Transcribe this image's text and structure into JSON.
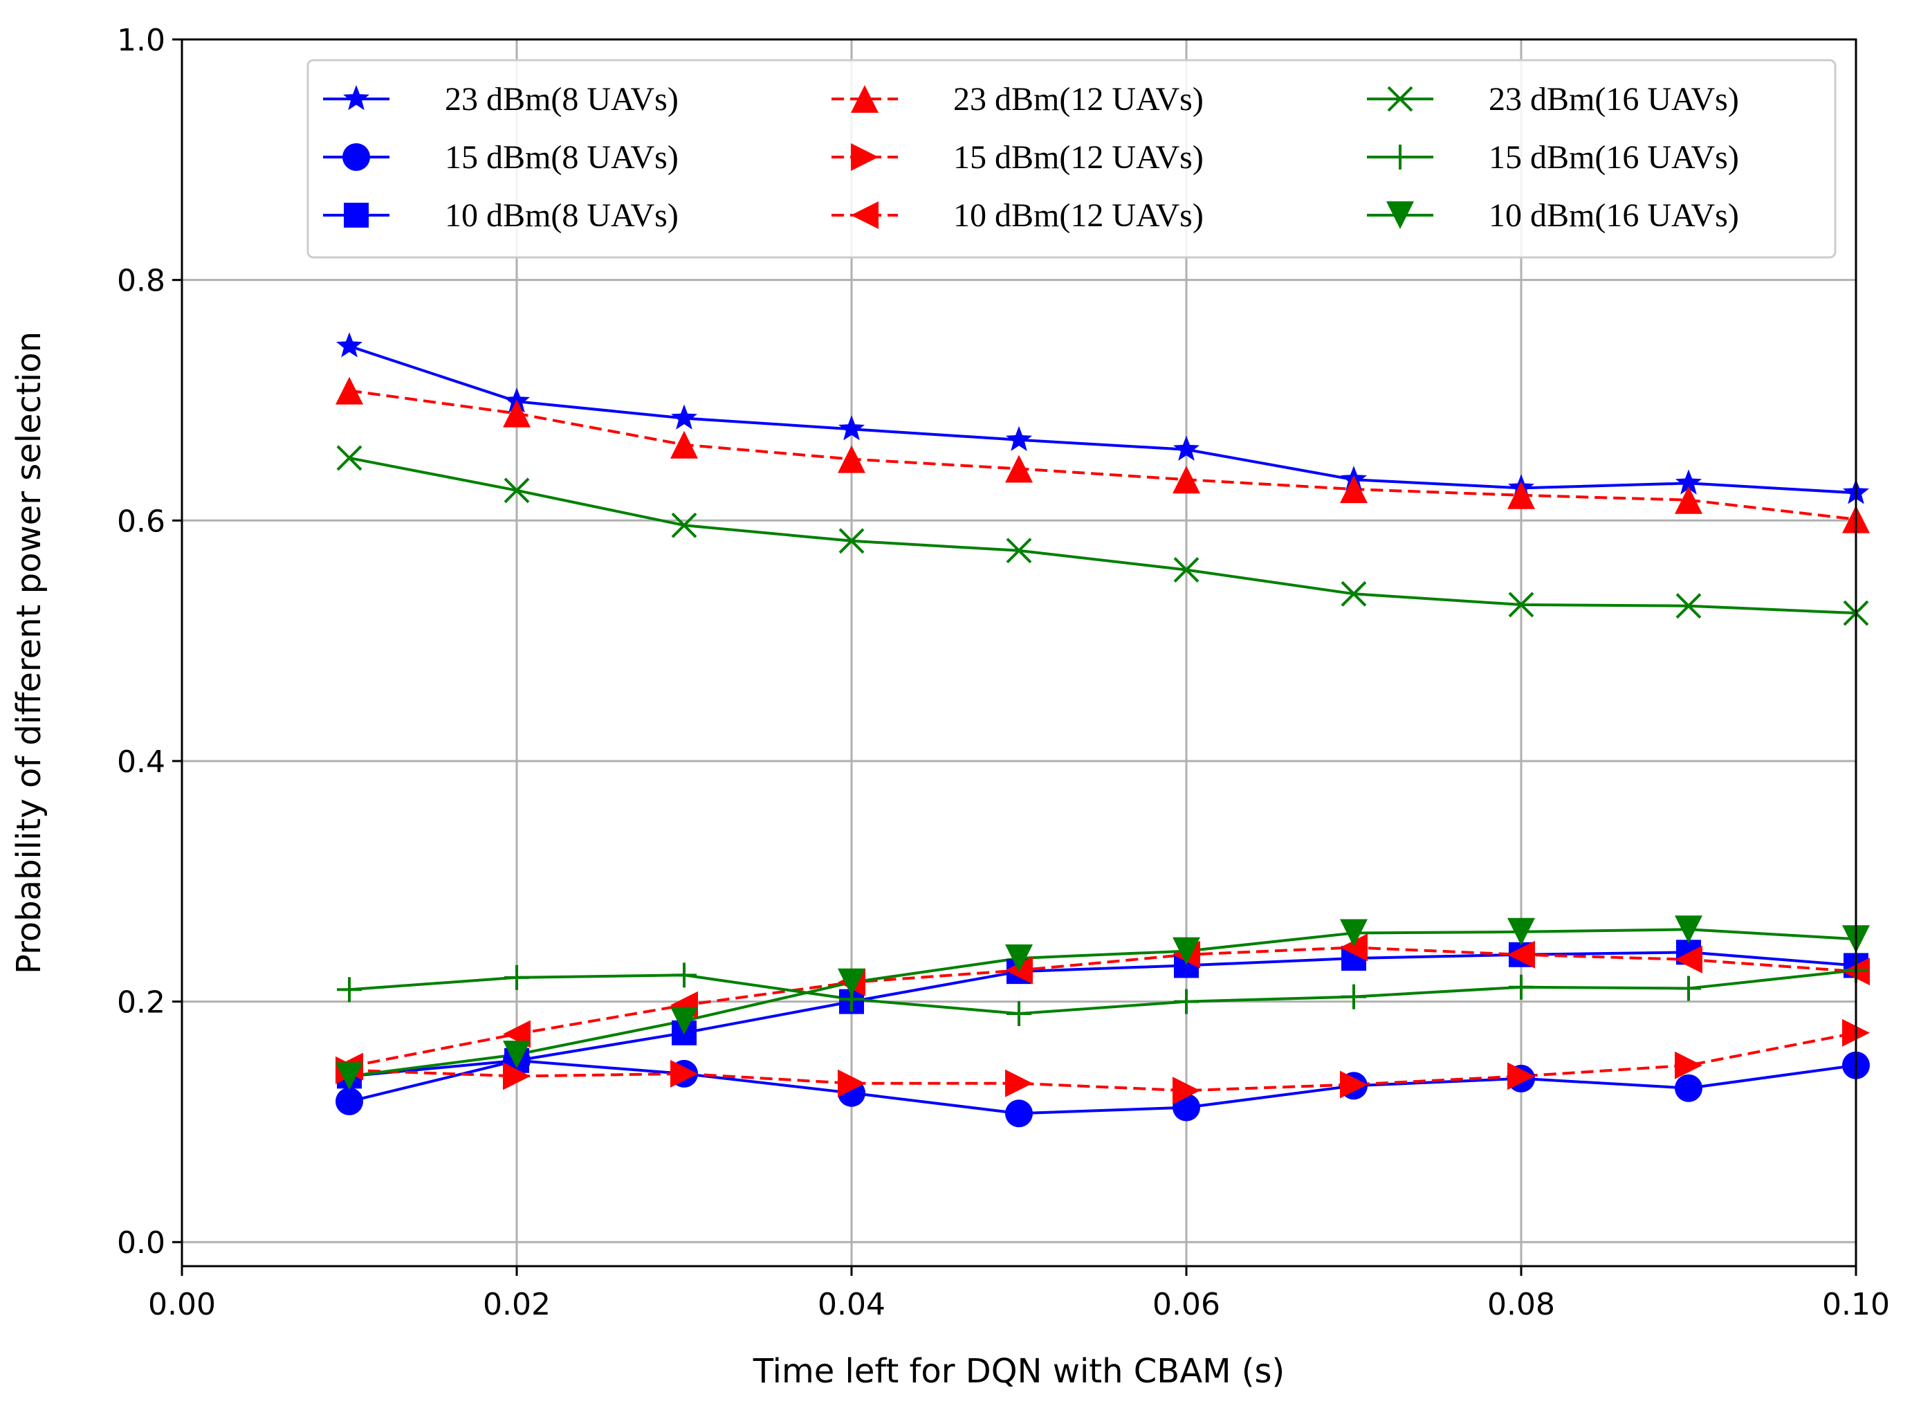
{
  "chart_data": {
    "type": "line",
    "title": "",
    "xlabel": "Time left for DQN with CBAM (s)",
    "ylabel": "Probability of different power selection",
    "xlim": [
      0.0,
      0.1
    ],
    "ylim": [
      -0.02,
      1.0
    ],
    "xticks": [
      0.0,
      0.02,
      0.04,
      0.06,
      0.08,
      0.1
    ],
    "xtick_labels": [
      "0.00",
      "0.02",
      "0.04",
      "0.06",
      "0.08",
      "0.10"
    ],
    "yticks": [
      0.0,
      0.2,
      0.4,
      0.6,
      0.8,
      1.0
    ],
    "ytick_labels": [
      "0.0",
      "0.2",
      "0.4",
      "0.6",
      "0.8",
      "1.0"
    ],
    "grid": true,
    "legend_position": "upper (3 columns)",
    "x": [
      0.01,
      0.02,
      0.03,
      0.04,
      0.05,
      0.06,
      0.07,
      0.08,
      0.09,
      0.1
    ],
    "series": [
      {
        "name": "23 dBm(8 UAVs)",
        "color": "#0000ff",
        "dash": "solid",
        "marker": "star",
        "values": [
          0.745,
          0.699,
          0.685,
          0.676,
          0.667,
          0.659,
          0.634,
          0.627,
          0.631,
          0.623
        ]
      },
      {
        "name": "15 dBm(8 UAVs)",
        "color": "#0000ff",
        "dash": "solid",
        "marker": "circle",
        "values": [
          0.117,
          0.151,
          0.14,
          0.124,
          0.107,
          0.112,
          0.13,
          0.136,
          0.128,
          0.147
        ]
      },
      {
        "name": "10 dBm(8 UAVs)",
        "color": "#0000ff",
        "dash": "solid",
        "marker": "square",
        "values": [
          0.138,
          0.151,
          0.174,
          0.2,
          0.225,
          0.23,
          0.236,
          0.239,
          0.241,
          0.23
        ]
      },
      {
        "name": "23 dBm(12 UAVs)",
        "color": "#ff0000",
        "dash": "dashed",
        "marker": "triangle-up",
        "values": [
          0.708,
          0.689,
          0.663,
          0.651,
          0.643,
          0.634,
          0.626,
          0.621,
          0.617,
          0.601
        ]
      },
      {
        "name": "15 dBm(12 UAVs)",
        "color": "#ff0000",
        "dash": "dashed",
        "marker": "triangle-right",
        "values": [
          0.143,
          0.138,
          0.14,
          0.132,
          0.132,
          0.126,
          0.131,
          0.138,
          0.147,
          0.174
        ]
      },
      {
        "name": "10 dBm(12 UAVs)",
        "color": "#ff0000",
        "dash": "dashed",
        "marker": "triangle-left",
        "values": [
          0.146,
          0.173,
          0.197,
          0.216,
          0.226,
          0.239,
          0.245,
          0.239,
          0.235,
          0.225
        ]
      },
      {
        "name": "23 dBm(16 UAVs)",
        "color": "#008000",
        "dash": "solid",
        "marker": "x",
        "values": [
          0.652,
          0.625,
          0.596,
          0.583,
          0.575,
          0.559,
          0.539,
          0.53,
          0.529,
          0.523
        ]
      },
      {
        "name": "15 dBm(16 UAVs)",
        "color": "#008000",
        "dash": "solid",
        "marker": "plus",
        "values": [
          0.21,
          0.22,
          0.222,
          0.202,
          0.19,
          0.2,
          0.204,
          0.212,
          0.211,
          0.226
        ]
      },
      {
        "name": "10 dBm(16 UAVs)",
        "color": "#008000",
        "dash": "solid",
        "marker": "triangle-down",
        "values": [
          0.138,
          0.156,
          0.184,
          0.216,
          0.236,
          0.242,
          0.257,
          0.258,
          0.26,
          0.252
        ]
      }
    ]
  }
}
